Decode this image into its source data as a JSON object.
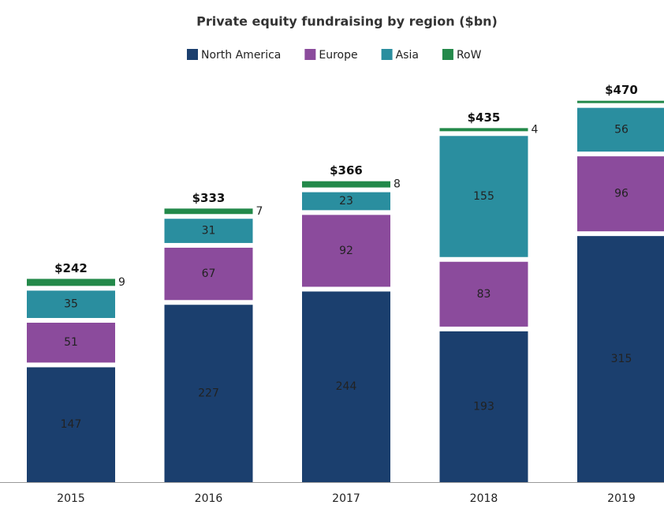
{
  "chart_data": {
    "type": "stacked_bar",
    "title": "Private equity fundraising by region ($bn)",
    "categories": [
      "2015",
      "2016",
      "2017",
      "2018",
      "2019"
    ],
    "series": [
      {
        "name": "North America",
        "color": "#1b3f6e",
        "values": [
          147,
          227,
          244,
          193,
          315
        ]
      },
      {
        "name": "Europe",
        "color": "#8b4b9c",
        "values": [
          51,
          67,
          92,
          83,
          96
        ]
      },
      {
        "name": "Asia",
        "color": "#2a8e9f",
        "values": [
          35,
          31,
          23,
          155,
          56
        ]
      },
      {
        "name": "RoW",
        "color": "#23894a",
        "values": [
          9,
          7,
          8,
          4,
          3
        ],
        "value_labels": [
          "9",
          "7",
          "8",
          "4",
          null
        ]
      }
    ],
    "totals": {
      "values": [
        242,
        333,
        366,
        435,
        470
      ],
      "value_labels": [
        "$242",
        "$333",
        "$366",
        "$435",
        "$470"
      ]
    }
  }
}
